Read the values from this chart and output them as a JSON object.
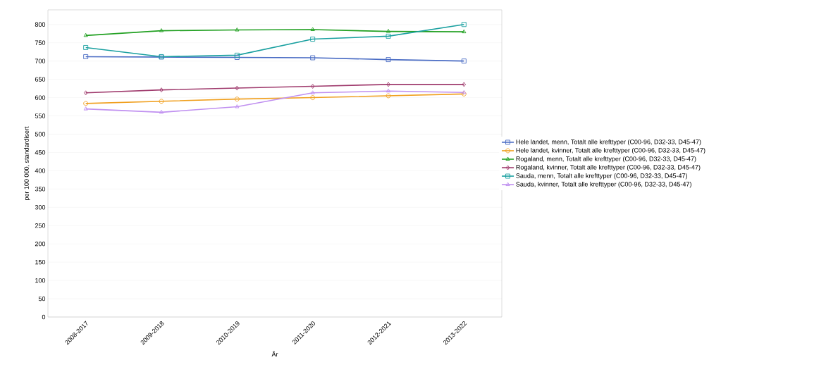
{
  "chart_data": {
    "type": "line",
    "xlabel": "År",
    "ylabel": "per 100 000, standardisert",
    "categories": [
      "2008-2017",
      "2009-2018",
      "2010-2019",
      "2011-2020",
      "2012-2021",
      "2013-2022"
    ],
    "series": [
      {
        "name": "Hele landet, menn, Totalt alle krefttyper (C00-96, D32-33, D45-47)",
        "color": "#4a6cc4",
        "marker": "square",
        "values": [
          712,
          711,
          710,
          709,
          704,
          700
        ]
      },
      {
        "name": "Hele landet, kvinner, Totalt alle krefttyper (C00-96, D32-33, D45-47)",
        "color": "#f0a020",
        "marker": "circle",
        "values": [
          584,
          590,
          596,
          600,
          605,
          610
        ]
      },
      {
        "name": "Rogaland, menn, Totalt alle krefttyper (C00-96, D32-33, D45-47)",
        "color": "#22a022",
        "marker": "triangle",
        "values": [
          770,
          783,
          785,
          786,
          781,
          780
        ]
      },
      {
        "name": "Rogaland, kvinner, Totalt alle krefttyper (C00-96, D32-33, D45-47)",
        "color": "#a03c6e",
        "marker": "diamond",
        "values": [
          613,
          621,
          626,
          631,
          636,
          636
        ]
      },
      {
        "name": "Sauda, menn, Totalt alle krefttyper (C00-96, D32-33, D45-47)",
        "color": "#1aa0a0",
        "marker": "square",
        "values": [
          737,
          712,
          716,
          760,
          768,
          800
        ]
      },
      {
        "name": "Sauda, kvinner, Totalt alle krefttyper (C00-96, D32-33, D45-47)",
        "color": "#c090f0",
        "marker": "triangle",
        "values": [
          569,
          560,
          575,
          613,
          618,
          614
        ]
      }
    ],
    "ylim": [
      0,
      840
    ],
    "yticks": [
      0,
      50,
      100,
      150,
      200,
      250,
      300,
      350,
      400,
      450,
      500,
      550,
      600,
      650,
      700,
      750,
      800
    ],
    "grid": "y",
    "legend": "right"
  }
}
